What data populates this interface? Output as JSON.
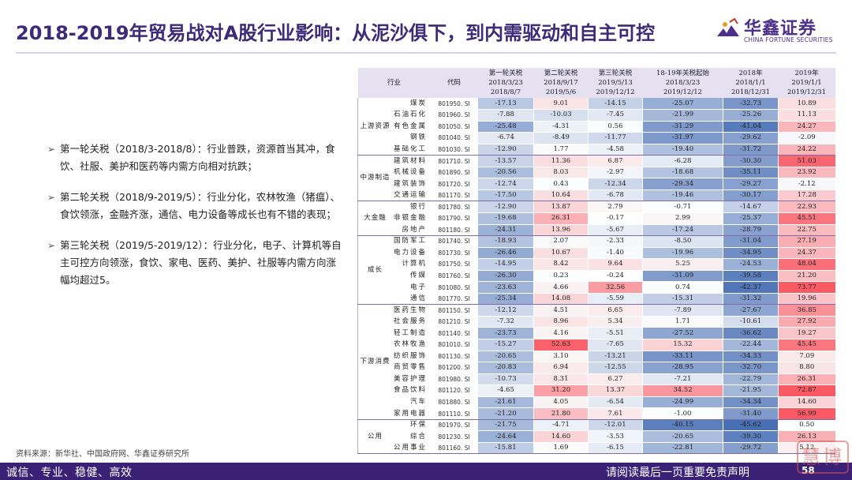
{
  "title": "2018-2019年贸易战对A股行业影响：从泥沙俱下，到内需驱动和自主可控",
  "logo": {
    "cn": "华鑫证券",
    "en": "CHINA FORTUNE SECURITIES"
  },
  "bullets": [
    "第一轮关税（2018/3-2018/8）：行业普跌，资源首当其冲，食饮、社服、美护和医药等内需方向相对抗跌；",
    "第二轮关税（2018/9-2019/5）：行业分化，农林牧渔（猪瘟）、食饮领涨，金融齐涨，通信、电力设备等成长也有不错的表现；",
    "第三轮关税（2019/5-2019/12）：行业分化，电子、计算机等自主可控方向领涨，食饮、家电、医药、美护、社服等内需方向涨幅均超过5。"
  ],
  "table": {
    "headers": [
      {
        "label": "行业"
      },
      {
        "label": "代码"
      },
      {
        "label": "第一轮关税",
        "d1": "2018/3/23",
        "d2": "2018/8/7"
      },
      {
        "label": "第二轮关税",
        "d1": "2018/9/17",
        "d2": "2019/5/6"
      },
      {
        "label": "第三轮关税",
        "d1": "2019/5/13",
        "d2": "2019/12/12"
      },
      {
        "label": "18-19年关税起始",
        "d1": "2018/3/23",
        "d2": "2019/12/12"
      },
      {
        "label": "2018年",
        "d1": "2018/1/1",
        "d2": "2018/12/31"
      },
      {
        "label": "2019年",
        "d1": "2019/1/1",
        "d2": "2019/12/31"
      }
    ],
    "groups": [
      {
        "name": "上游资源",
        "rows": [
          {
            "ind": "煤炭",
            "code": "801950. SI",
            "v": [
              -17.13,
              9.01,
              -14.15,
              -25.07,
              -32.73,
              10.89
            ],
            "t": [
              "-17.13",
              "9.01",
              "-14.15",
              "-25.07",
              "-32.73",
              "10.89"
            ]
          },
          {
            "ind": "石油石化",
            "code": "801960. SI",
            "v": [
              -7.88,
              -10.03,
              -7.45,
              -21.99,
              -25.26,
              11.13
            ],
            "t": [
              "-7.88",
              "-10.03",
              "-7.45",
              "-21.99",
              "-25.26",
              "11.13"
            ]
          },
          {
            "ind": "有色金属",
            "code": "801050. SI",
            "v": [
              -25.48,
              -4.31,
              0.56,
              -31.29,
              -41.04,
              24.27
            ],
            "t": [
              "-25.48",
              "-4.31",
              "0.56",
              "-31.29",
              "-41.04",
              "24.27"
            ]
          },
          {
            "ind": "钢铁",
            "code": "801040. SI",
            "v": [
              -6.74,
              -8.49,
              -11.77,
              -31.97,
              -29.62,
              -2.09
            ],
            "t": [
              "-6.74",
              "-8.49",
              "-11.77",
              "-31.97",
              "-29.62",
              "-2.09"
            ]
          },
          {
            "ind": "基础化工",
            "code": "801030. SI",
            "v": [
              -12.9,
              1.77,
              -4.58,
              -19.4,
              -31.72,
              24.22
            ],
            "t": [
              "-12.90",
              "1.77",
              "-4.58",
              "-19.40",
              "-31.72",
              "24.22"
            ]
          }
        ]
      },
      {
        "name": "中游制造",
        "rows": [
          {
            "ind": "建筑材料",
            "code": "801710. SI",
            "v": [
              -13.57,
              11.36,
              6.87,
              -6.28,
              -30.3,
              51.03
            ],
            "t": [
              "-13.57",
              "11.36",
              "6.87",
              "-6.28",
              "-30.30",
              "51.03"
            ]
          },
          {
            "ind": "机械设备",
            "code": "801890. SI",
            "v": [
              -20.56,
              8.03,
              -2.97,
              -18.68,
              -35.11,
              23.92
            ],
            "t": [
              "-20.56",
              "8.03",
              "-2.97",
              "-18.68",
              "-35.11",
              "23.92"
            ]
          },
          {
            "ind": "建筑装饰",
            "code": "801720. SI",
            "v": [
              -12.74,
              0.43,
              -12.34,
              -29.34,
              -29.27,
              -2.12
            ],
            "t": [
              "-12.74",
              "0.43",
              "-12.34",
              "-29.34",
              "-29.27",
              "-2.12"
            ]
          },
          {
            "ind": "交通运输",
            "code": "801170. SI",
            "v": [
              -17.5,
              10.64,
              -6.78,
              -19.46,
              -30.17,
              17.28
            ],
            "t": [
              "-17.50",
              "10.64",
              "-6.78",
              "-19.46",
              "-30.17",
              "17.28"
            ]
          }
        ]
      },
      {
        "name": "大金融",
        "rows": [
          {
            "ind": "银行",
            "code": "801780. SI",
            "v": [
              -12.9,
              13.87,
              2.79,
              -0.71,
              -14.67,
              22.93
            ],
            "t": [
              "-12.90",
              "13.87",
              "2.79",
              "-0.71",
              "-14.67",
              "22.93"
            ]
          },
          {
            "ind": "非银金融",
            "code": "801790. SI",
            "v": [
              -19.68,
              26.31,
              -0.17,
              2.99,
              -25.37,
              45.51
            ],
            "t": [
              "-19.68",
              "26.31",
              "-0.17",
              "2.99",
              "-25.37",
              "45.51"
            ]
          },
          {
            "ind": "房地产",
            "code": "801180. SI",
            "v": [
              -24.31,
              13.96,
              -5.67,
              -17.24,
              -28.79,
              22.75
            ],
            "t": [
              "-24.31",
              "13.96",
              "-5.67",
              "-17.24",
              "-28.79",
              "22.75"
            ]
          }
        ]
      },
      {
        "name": "成长",
        "rows": [
          {
            "ind": "国防军工",
            "code": "801740. SI",
            "v": [
              -18.93,
              2.07,
              -2.33,
              -8.5,
              -31.04,
              27.19
            ],
            "t": [
              "-18.93",
              "2.07",
              "-2.33",
              "-8.50",
              "-31.04",
              "27.19"
            ]
          },
          {
            "ind": "电力设备",
            "code": "801730. SI",
            "v": [
              -26.46,
              10.67,
              -1.4,
              -19.96,
              -34.95,
              24.37
            ],
            "t": [
              "-26.46",
              "10.67",
              "-1.40",
              "-19.96",
              "-34.95",
              "24.37"
            ]
          },
          {
            "ind": "计算机",
            "code": "801750. SI",
            "v": [
              -14.95,
              8.42,
              9.64,
              5.25,
              -24.53,
              48.04
            ],
            "t": [
              "-14.95",
              "8.42",
              "9.64",
              "5.25",
              "-24.53",
              "48.04"
            ]
          },
          {
            "ind": "传媒",
            "code": "801760. SI",
            "v": [
              -26.3,
              0.23,
              -0.24,
              -31.09,
              -39.58,
              21.2
            ],
            "t": [
              "-26.30",
              "0.23",
              "-0.24",
              "-31.09",
              "-39.58",
              "21.20"
            ]
          },
          {
            "ind": "电子",
            "code": "801080. SI",
            "v": [
              -23.63,
              4.66,
              32.56,
              0.74,
              -42.37,
              73.77
            ],
            "t": [
              "-23.63",
              "4.66",
              "32.56",
              "0.74",
              "-42.37",
              "73.77"
            ]
          },
          {
            "ind": "通信",
            "code": "801770. SI",
            "v": [
              -25.34,
              14.08,
              -5.59,
              -15.31,
              -31.32,
              19.96
            ],
            "t": [
              "-25.34",
              "14.08",
              "-5.59",
              "-15.31",
              "-31.32",
              "19.96"
            ]
          }
        ]
      },
      {
        "name": "下游消费",
        "rows": [
          {
            "ind": "医药生物",
            "code": "801150. SI",
            "v": [
              -12.12,
              4.51,
              6.65,
              -7.89,
              -27.67,
              36.85
            ],
            "t": [
              "-12.12",
              "4.51",
              "6.65",
              "-7.89",
              "-27.67",
              "36.85"
            ]
          },
          {
            "ind": "社会服务",
            "code": "801210. SI",
            "v": [
              -7.32,
              8.96,
              5.34,
              1.71,
              -10.61,
              27.92
            ],
            "t": [
              "-7.32",
              "8.96",
              "5.34",
              "1.71",
              "-10.61",
              "27.92"
            ]
          },
          {
            "ind": "轻工制造",
            "code": "801140. SI",
            "v": [
              -23.73,
              4.16,
              -5.51,
              -27.52,
              -36.62,
              19.27
            ],
            "t": [
              "-23.73",
              "4.16",
              "-5.51",
              "-27.52",
              "-36.62",
              "19.27"
            ]
          },
          {
            "ind": "农林牧渔",
            "code": "801010. SI",
            "v": [
              -15.27,
              52.63,
              -7.65,
              15.32,
              -22.44,
              45.45
            ],
            "t": [
              "-15.27",
              "52.63",
              "-7.65",
              "15.32",
              "-22.44",
              "45.45"
            ]
          },
          {
            "ind": "纺织服饰",
            "code": "801130. SI",
            "v": [
              -20.65,
              3.1,
              -13.21,
              -33.11,
              -34.33,
              7.09
            ],
            "t": [
              "-20.65",
              "3.10",
              "-13.21",
              "-33.11",
              "-34.33",
              "7.09"
            ]
          },
          {
            "ind": "商贸零售",
            "code": "801200. SI",
            "v": [
              -20.83,
              6.94,
              -12.55,
              -28.95,
              -32.7,
              8.8
            ],
            "t": [
              "-20.83",
              "6.94",
              "-12.55",
              "-28.95",
              "-32.70",
              "8.80"
            ]
          },
          {
            "ind": "美容护理",
            "code": "801980. SI",
            "v": [
              -10.73,
              8.31,
              6.27,
              -7.21,
              -22.79,
              26.31
            ],
            "t": [
              "-10.73",
              "8.31",
              "6.27",
              "-7.21",
              "-22.79",
              "26.31"
            ]
          },
          {
            "ind": "食品饮料",
            "code": "801120. SI",
            "v": [
              -4.65,
              31.2,
              13.37,
              34.52,
              -21.95,
              72.87
            ],
            "t": [
              "-4.65",
              "31.20",
              "13.37",
              "34.52",
              "-21.95",
              "72.87"
            ]
          },
          {
            "ind": "汽车",
            "code": "801880. SI",
            "v": [
              -21.61,
              4.05,
              -6.54,
              -24.99,
              -34.34,
              14.6
            ],
            "t": [
              "-21.61",
              "4.05",
              "-6.54",
              "-24.99",
              "-34.34",
              "14.60"
            ]
          },
          {
            "ind": "家用电器",
            "code": "801110. SI",
            "v": [
              -21.2,
              21.8,
              7.61,
              -1.0,
              -31.4,
              56.99
            ],
            "t": [
              "-21.20",
              "21.80",
              "7.61",
              "-1.00",
              "-31.40",
              "56.99"
            ]
          }
        ]
      },
      {
        "name": "公用",
        "rows": [
          {
            "ind": "环保",
            "code": "801970. SI",
            "v": [
              -21.75,
              -4.71,
              -12.01,
              -40.15,
              -45.62,
              0.5
            ],
            "t": [
              "-21.75",
              "-4.71",
              "-12.01",
              "-40.15",
              "-45.62",
              "0.50"
            ]
          },
          {
            "ind": "综合",
            "code": "801230. SI",
            "v": [
              -24.64,
              14.6,
              -3.53,
              -20.65,
              -39.3,
              26.13
            ],
            "t": [
              "-24.64",
              "14.60",
              "-3.53",
              "-20.65",
              "-39.30",
              "26.13"
            ]
          },
          {
            "ind": "公用事业",
            "code": "801160. SI",
            "v": [
              -15.81,
              1.69,
              -6.15,
              -22.81,
              -29.72,
              5.12
            ],
            "t": [
              "-15.81",
              "1.69",
              "-6.15",
              "-22.81",
              "-29.72",
              "5.12"
            ]
          }
        ]
      }
    ]
  },
  "source": "资料来源：新华社、中国政府网、华鑫证券研究所",
  "footer": {
    "left": "诚信、专业、稳健、高效",
    "right": "请阅读最后一页重要免责声明",
    "page": "58"
  },
  "stamp": "慧博",
  "colors": {
    "brand": "#3a2175",
    "title": "#3d2a78",
    "positive": "#f0505a",
    "negative": "#4a6fb5"
  }
}
